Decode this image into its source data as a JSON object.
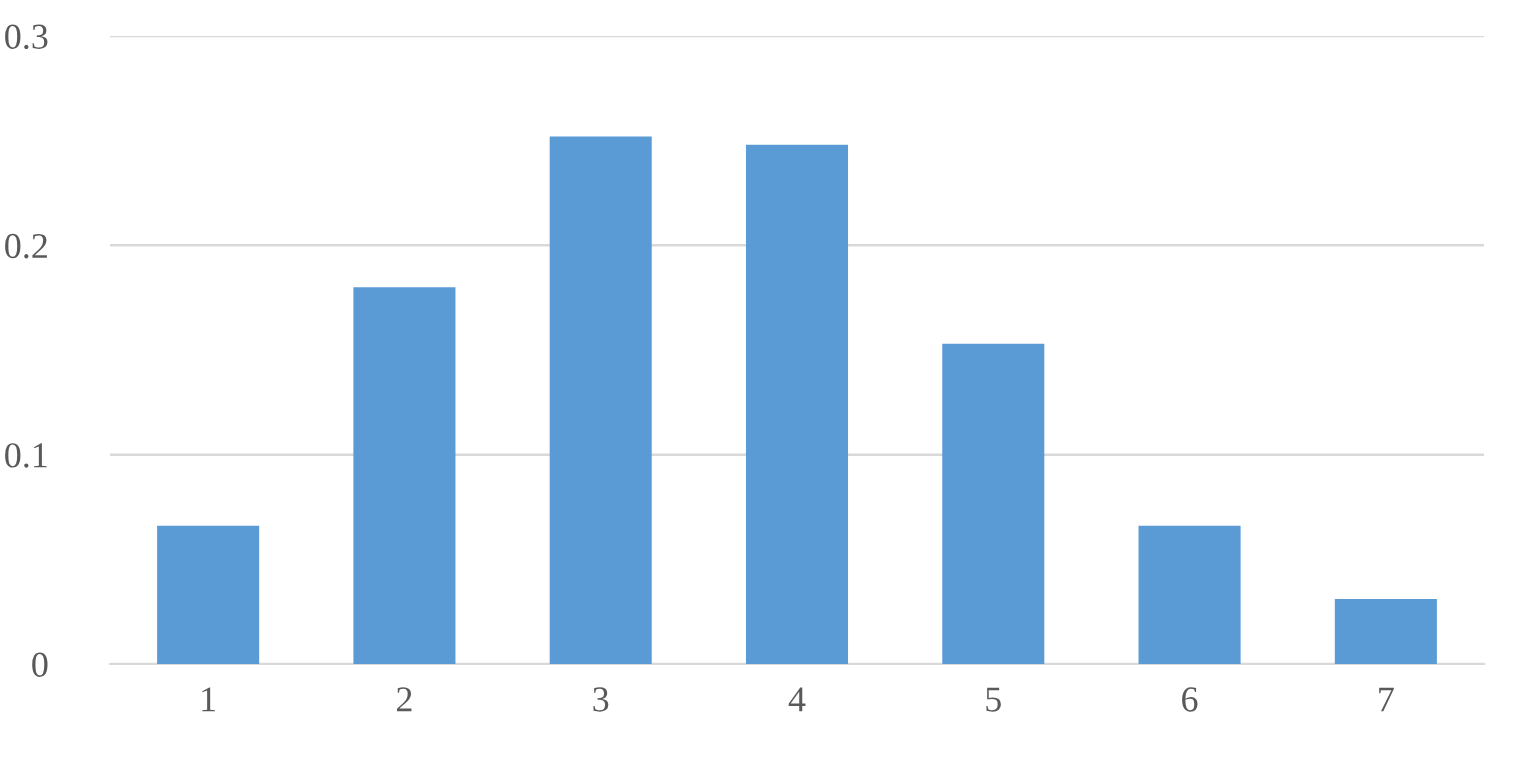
{
  "chart_data": {
    "type": "bar",
    "categories": [
      "1",
      "2",
      "3",
      "4",
      "5",
      "6",
      "7"
    ],
    "values": [
      0.066,
      0.18,
      0.252,
      0.248,
      0.153,
      0.066,
      0.031
    ],
    "color": "#5b9bd5",
    "ylim": [
      0,
      0.3
    ],
    "yticks": [
      {
        "value": 0,
        "label": "0"
      },
      0.1,
      0.2,
      0.3
    ],
    "grid": "y"
  }
}
